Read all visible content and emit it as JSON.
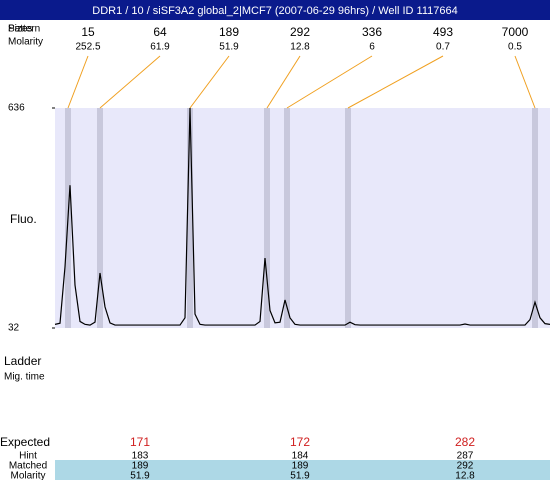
{
  "header": {
    "title": "DDR1 / 10 / siSF3A2 global_2|MCF7 (2007-06-29 96hrs) / Well ID 1117664"
  },
  "markers": {
    "pattern_label": "Pattern",
    "size_label": "Sizes",
    "molarity_label": "Molarity",
    "sizes": [
      15,
      64,
      189,
      292,
      336,
      493,
      7000
    ],
    "molarities": [
      252.5,
      61.9,
      51.9,
      12.8,
      6,
      0.7,
      0.5
    ]
  },
  "chart_data": {
    "type": "line",
    "y_label": "Fluo.",
    "color": "#000000",
    "ylim": [
      32,
      636
    ],
    "yticks": [
      32,
      636
    ],
    "values": [
      42,
      45,
      200,
      424,
      150,
      50,
      42,
      40,
      48,
      183,
      90,
      46,
      40,
      40,
      40,
      40,
      40,
      40,
      40,
      40,
      40,
      40,
      40,
      40,
      40,
      40,
      60,
      636,
      70,
      42,
      40,
      40,
      40,
      40,
      40,
      40,
      40,
      40,
      40,
      40,
      40,
      50,
      224,
      80,
      46,
      48,
      109,
      60,
      42,
      40,
      40,
      40,
      40,
      40,
      40,
      40,
      40,
      40,
      40,
      48,
      41,
      40,
      40,
      40,
      40,
      40,
      40,
      40,
      40,
      40,
      40,
      40,
      40,
      40,
      40,
      40,
      40,
      40,
      40,
      40,
      40,
      40,
      43,
      40,
      40,
      40,
      40,
      40,
      40,
      40,
      40,
      40,
      40,
      40,
      40,
      55,
      103,
      60,
      44,
      42
    ]
  },
  "ladder": {
    "label": "Ladder",
    "mig_time_label": "Mig. time"
  },
  "results": {
    "expected_label": "Expected",
    "hint_label": "Hint",
    "matched_label": "Matched",
    "molarity_label": "Molarity",
    "expected": [
      171,
      172,
      282
    ],
    "hint": [
      183,
      184,
      287
    ],
    "matched": [
      189,
      189,
      292
    ],
    "molarity": [
      51.9,
      51.9,
      12.8
    ]
  }
}
